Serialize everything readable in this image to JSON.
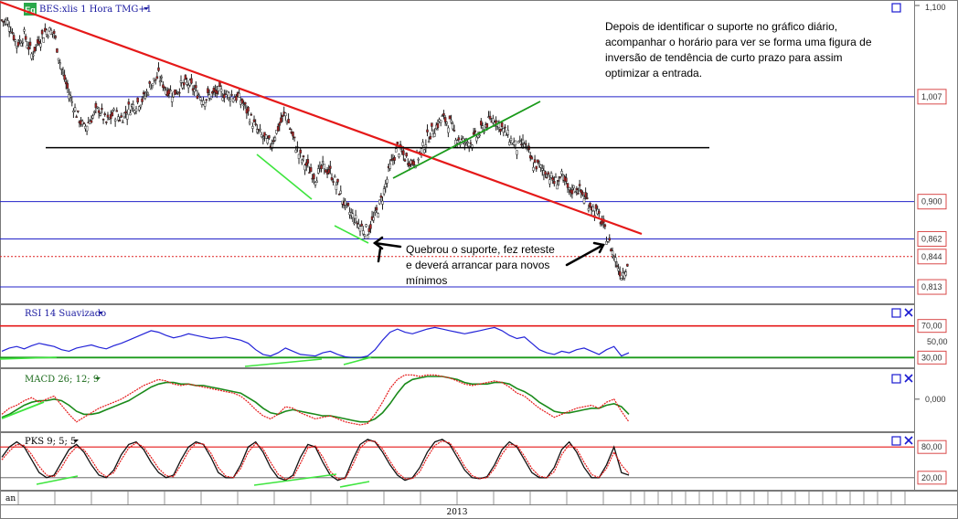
{
  "chart_data": {
    "type": "line",
    "header": {
      "logo": "Eq",
      "title": "BES:xlis 1 Hora TMG+1"
    },
    "year_label": "2013",
    "month_label": "an",
    "price_panel": {
      "right_top_label": "1,100",
      "annotation_main": [
        "Depois de identificar o suporte no gráfico diário,",
        "acompanhar o horário para ver se forma uma figura de",
        "inversão de tendência de curto prazo para assim",
        "optimizar a entrada."
      ],
      "annotation_break": [
        "Quebrou o suporte, fez reteste",
        "e deverá arrancar para novos",
        "mínimos"
      ],
      "price_levels": [
        {
          "label": "1,007",
          "price": 1.007
        },
        {
          "label": "0,900",
          "price": 0.9
        },
        {
          "label": "0,862",
          "price": 0.862
        },
        {
          "label": "0,844",
          "price": 0.844
        },
        {
          "label": "0,813",
          "price": 0.813
        }
      ],
      "support_price": 0.955,
      "close": [
        1.085,
        1.082,
        1.06,
        1.07,
        1.05,
        1.065,
        1.075,
        1.072,
        1.035,
        1.01,
        0.99,
        0.975,
        0.985,
        0.995,
        0.98,
        0.99,
        0.985,
        0.995,
        1.0,
        1.005,
        1.02,
        1.028,
        1.015,
        1.01,
        1.018,
        1.02,
        1.012,
        1.005,
        1.008,
        1.012,
        1.01,
        1.008,
        1.004,
        0.99,
        0.975,
        0.965,
        0.958,
        0.975,
        0.99,
        0.965,
        0.945,
        0.935,
        0.925,
        0.935,
        0.93,
        0.915,
        0.895,
        0.885,
        0.875,
        0.87,
        0.885,
        0.905,
        0.935,
        0.955,
        0.945,
        0.94,
        0.948,
        0.965,
        0.975,
        0.985,
        0.98,
        0.965,
        0.96,
        0.962,
        0.97,
        0.98,
        0.985,
        0.975,
        0.965,
        0.955,
        0.96,
        0.94,
        0.935,
        0.93,
        0.92,
        0.925,
        0.91,
        0.915,
        0.905,
        0.895,
        0.885,
        0.865,
        0.845,
        0.825,
        0.84
      ]
    },
    "rsi_panel": {
      "title": "RSI 14 Suavizado",
      "levels": [
        {
          "label": "70,00",
          "value": 70
        },
        {
          "label": "50,00",
          "value": 50
        },
        {
          "label": "30,00",
          "value": 30
        }
      ],
      "values": [
        38,
        42,
        44,
        41,
        45,
        48,
        46,
        44,
        40,
        38,
        42,
        44,
        46,
        43,
        41,
        45,
        48,
        52,
        56,
        60,
        64,
        62,
        58,
        55,
        57,
        60,
        58,
        56,
        54,
        55,
        56,
        54,
        52,
        48,
        40,
        34,
        32,
        36,
        42,
        38,
        34,
        33,
        32,
        36,
        38,
        34,
        31,
        30,
        30,
        32,
        40,
        52,
        62,
        66,
        62,
        60,
        63,
        66,
        68,
        66,
        64,
        62,
        60,
        62,
        64,
        66,
        68,
        64,
        58,
        54,
        56,
        48,
        40,
        36,
        34,
        38,
        36,
        40,
        42,
        38,
        34,
        40,
        44,
        32,
        36
      ]
    },
    "macd_panel": {
      "title": "MACD 26; 12; 9",
      "zero_label": "0,000",
      "macd": [
        -0.01,
        -0.006,
        -0.004,
        -0.001,
        0.001,
        -0.002,
        0.0,
        0.002,
        -0.004,
        -0.01,
        -0.015,
        -0.012,
        -0.009,
        -0.006,
        -0.004,
        -0.002,
        0.0,
        0.003,
        0.006,
        0.009,
        0.011,
        0.013,
        0.012,
        0.01,
        0.009,
        0.01,
        0.009,
        0.008,
        0.007,
        0.006,
        0.005,
        0.004,
        0.002,
        -0.002,
        -0.007,
        -0.011,
        -0.013,
        -0.01,
        -0.005,
        -0.006,
        -0.009,
        -0.011,
        -0.013,
        -0.012,
        -0.011,
        -0.013,
        -0.015,
        -0.016,
        -0.017,
        -0.016,
        -0.01,
        -0.002,
        0.007,
        0.013,
        0.016,
        0.016,
        0.015,
        0.016,
        0.016,
        0.015,
        0.014,
        0.012,
        0.01,
        0.009,
        0.01,
        0.011,
        0.012,
        0.011,
        0.008,
        0.004,
        0.002,
        -0.002,
        -0.006,
        -0.009,
        -0.012,
        -0.01,
        -0.008,
        -0.006,
        -0.005,
        -0.004,
        -0.006,
        -0.002,
        0.0,
        -0.008,
        -0.015
      ],
      "signal": [
        -0.012,
        -0.01,
        -0.007,
        -0.004,
        -0.002,
        -0.001,
        -0.001,
        0.0,
        -0.001,
        -0.004,
        -0.008,
        -0.01,
        -0.01,
        -0.009,
        -0.007,
        -0.005,
        -0.003,
        -0.001,
        0.002,
        0.005,
        0.008,
        0.01,
        0.011,
        0.011,
        0.01,
        0.01,
        0.009,
        0.009,
        0.008,
        0.007,
        0.006,
        0.005,
        0.004,
        0.001,
        -0.002,
        -0.006,
        -0.009,
        -0.01,
        -0.008,
        -0.007,
        -0.008,
        -0.009,
        -0.01,
        -0.011,
        -0.011,
        -0.012,
        -0.013,
        -0.014,
        -0.015,
        -0.015,
        -0.013,
        -0.009,
        -0.003,
        0.004,
        0.01,
        0.013,
        0.014,
        0.015,
        0.015,
        0.015,
        0.014,
        0.013,
        0.011,
        0.01,
        0.01,
        0.01,
        0.011,
        0.011,
        0.01,
        0.007,
        0.005,
        0.002,
        -0.002,
        -0.005,
        -0.008,
        -0.009,
        -0.009,
        -0.008,
        -0.007,
        -0.006,
        -0.006,
        -0.004,
        -0.003,
        -0.005,
        -0.01
      ]
    },
    "pks_panel": {
      "title": "PKS 9; 5; 5",
      "levels": [
        {
          "label": "80,00",
          "value": 80
        },
        {
          "label": "20,00",
          "value": 20
        }
      ],
      "k": [
        60,
        80,
        90,
        80,
        55,
        30,
        20,
        25,
        50,
        75,
        85,
        70,
        45,
        25,
        20,
        35,
        65,
        85,
        90,
        75,
        50,
        30,
        20,
        25,
        55,
        80,
        90,
        85,
        60,
        30,
        20,
        20,
        45,
        80,
        90,
        70,
        40,
        20,
        15,
        25,
        60,
        85,
        80,
        50,
        25,
        15,
        20,
        55,
        85,
        95,
        90,
        70,
        45,
        25,
        15,
        20,
        40,
        70,
        90,
        95,
        85,
        60,
        35,
        20,
        18,
        22,
        45,
        75,
        90,
        80,
        55,
        30,
        20,
        20,
        40,
        75,
        90,
        70,
        40,
        20,
        20,
        45,
        80,
        30,
        25
      ],
      "d": [
        55,
        72,
        85,
        83,
        65,
        42,
        25,
        22,
        40,
        65,
        80,
        75,
        55,
        32,
        22,
        30,
        55,
        78,
        88,
        80,
        60,
        38,
        24,
        22,
        45,
        72,
        87,
        86,
        68,
        40,
        23,
        20,
        38,
        70,
        87,
        76,
        50,
        27,
        17,
        20,
        48,
        78,
        82,
        60,
        32,
        18,
        18,
        45,
        78,
        92,
        91,
        76,
        52,
        30,
        18,
        18,
        32,
        60,
        83,
        92,
        88,
        68,
        42,
        24,
        18,
        20,
        38,
        66,
        85,
        83,
        62,
        38,
        23,
        20,
        32,
        65,
        85,
        76,
        50,
        26,
        20,
        38,
        70,
        45,
        28
      ]
    }
  }
}
